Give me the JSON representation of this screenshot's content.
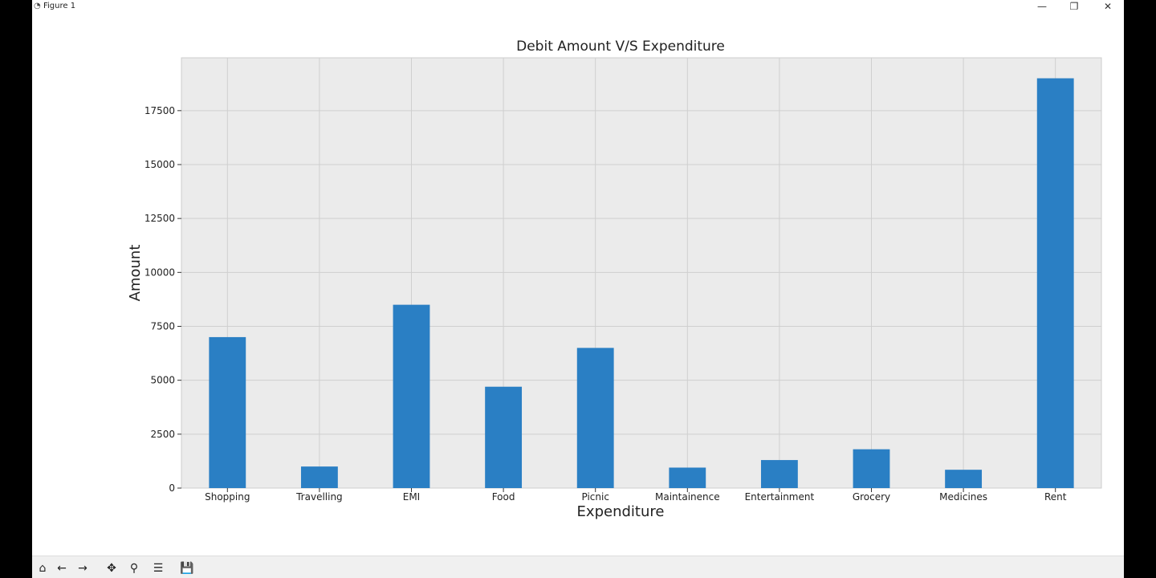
{
  "window": {
    "title": "Figure 1",
    "icons": {
      "app": "figure-icon",
      "minimize": "minimize-icon",
      "restore": "restore-icon",
      "close": "close-icon"
    }
  },
  "toolbar": {
    "tools": [
      {
        "name": "home-icon",
        "glyph": "⌂"
      },
      {
        "name": "back-icon",
        "glyph": "←"
      },
      {
        "name": "forward-icon",
        "glyph": "→"
      },
      {
        "name": "pan-icon",
        "glyph": "✥"
      },
      {
        "name": "zoom-icon",
        "glyph": "⚲"
      },
      {
        "name": "configure-icon",
        "glyph": "☰"
      },
      {
        "name": "save-icon",
        "glyph": "💾"
      }
    ]
  },
  "chart_data": {
    "type": "bar",
    "title": "Debit Amount V/S Expenditure",
    "xlabel": "Expenditure",
    "ylabel": "Amount",
    "categories": [
      "Shopping",
      "Travelling",
      "EMI",
      "Food",
      "Picnic",
      "Maintainence",
      "Entertainment",
      "Grocery",
      "Medicines",
      "Rent"
    ],
    "values": [
      7000,
      1000,
      8500,
      4700,
      6500,
      950,
      1300,
      1800,
      850,
      19000
    ],
    "yticks": [
      0,
      2500,
      5000,
      7500,
      10000,
      12500,
      15000,
      17500
    ],
    "ylim": [
      0,
      19950
    ],
    "grid": true,
    "colors": {
      "bar": "#2a7fc4",
      "background": "#ebebeb",
      "grid": "#cfcfcf"
    }
  }
}
